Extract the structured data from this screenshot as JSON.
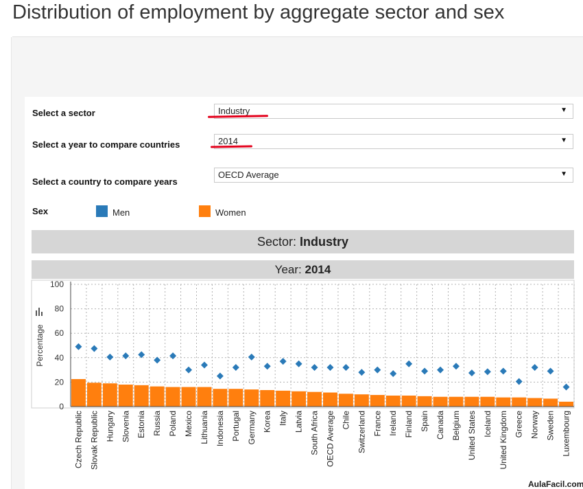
{
  "page": {
    "title": "Distribution of employment by aggregate sector and sex"
  },
  "controls": {
    "sector": {
      "label": "Select a sector",
      "value": "Industry"
    },
    "year": {
      "label": "Select a year to compare countries",
      "value": "2014"
    },
    "country": {
      "label": "Select a country to compare years",
      "value": "OECD Average"
    },
    "sex": {
      "label": "Sex"
    }
  },
  "colors": {
    "men": "#2a7ab8",
    "women": "#ff7f0e",
    "grid": "#b0b0b0",
    "axis": "#444444",
    "annotation": "#e3001b"
  },
  "headers": {
    "sector_prefix": "Sector:",
    "sector_value": "Industry",
    "year_prefix": "Year:",
    "year_value": "2014"
  },
  "watermark": "AulaFacil.com",
  "chart_data": {
    "type": "bar",
    "ylabel": "Percentage",
    "ylim": [
      0,
      100
    ],
    "yticks": [
      0,
      20,
      40,
      60,
      80,
      100
    ],
    "grid": true,
    "legend": "top-left",
    "categories": [
      "Czech Republic",
      "Slovak Republic",
      "Hungary",
      "Slovenia",
      "Estonia",
      "Russia",
      "Poland",
      "Mexico",
      "Lithuania",
      "Indonesia",
      "Portugal",
      "Germany",
      "Korea",
      "Italy",
      "Latvia",
      "South Africa",
      "OECD Average",
      "Chile",
      "Switzerland",
      "France",
      "Ireland",
      "Finland",
      "Spain",
      "Canada",
      "Belgium",
      "United States",
      "Iceland",
      "United Kingdom",
      "Greece",
      "Norway",
      "Sweden",
      "Luxembourg"
    ],
    "series": [
      {
        "name": "Men",
        "marker": "diamond",
        "values": [
          49,
          47.5,
          40.5,
          41.5,
          42.5,
          38,
          41.5,
          30,
          34,
          25,
          32,
          40.5,
          33,
          37,
          35,
          32,
          32,
          32,
          28,
          30,
          27,
          35,
          29,
          30,
          33,
          27.5,
          28.5,
          29,
          20.5,
          32,
          29,
          16
        ]
      },
      {
        "name": "Women",
        "marker": "bar",
        "values": [
          22.5,
          19.5,
          19,
          18,
          17.5,
          16.5,
          16,
          16,
          16,
          14.5,
          14.5,
          14,
          13.5,
          13,
          12.5,
          12,
          11.5,
          10.5,
          10,
          9.5,
          9,
          9,
          8.5,
          8,
          8,
          8,
          8,
          7.5,
          7.5,
          7,
          6.5,
          4
        ]
      }
    ]
  }
}
